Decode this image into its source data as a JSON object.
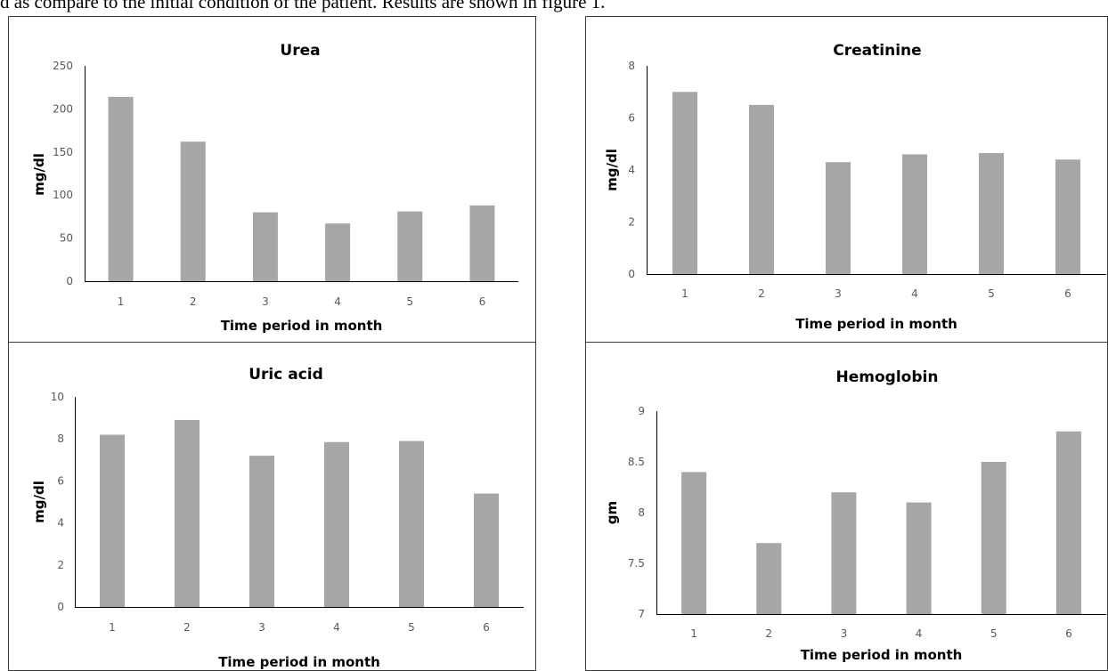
{
  "caption_fragment": "d as compare to the initial condition of the patient. Results are shown in figure 1.",
  "colors": {
    "bar": "#a6a6a6",
    "axis": "#000000",
    "tick_text": "#595959"
  },
  "chart_data": [
    {
      "type": "bar",
      "title": "Urea",
      "xlabel": "Time period in month",
      "ylabel": "mg/dl",
      "categories": [
        "1",
        "2",
        "3",
        "4",
        "5",
        "6"
      ],
      "values": [
        214,
        162,
        80,
        67,
        81,
        88
      ],
      "ylim": [
        0,
        250
      ],
      "yticks": [
        0,
        50,
        100,
        150,
        200,
        250
      ],
      "ytick_labels": [
        "0",
        "50",
        "100",
        "150",
        "200",
        "250"
      ],
      "grid": false,
      "legend": "none"
    },
    {
      "type": "bar",
      "title": "Creatinine",
      "xlabel": "Time period in month",
      "ylabel": "mg/dl",
      "categories": [
        "1",
        "2",
        "3",
        "4",
        "5",
        "6"
      ],
      "values": [
        7.0,
        6.5,
        4.3,
        4.6,
        4.65,
        4.4
      ],
      "ylim": [
        0,
        8
      ],
      "yticks": [
        0,
        2,
        4,
        6,
        8
      ],
      "ytick_labels": [
        "0",
        "2",
        "4",
        "6",
        "8"
      ],
      "grid": false,
      "legend": "none"
    },
    {
      "type": "bar",
      "title": "Uric acid",
      "xlabel": "Time period in month",
      "ylabel": "mg/dl",
      "categories": [
        "1",
        "2",
        "3",
        "4",
        "5",
        "6"
      ],
      "values": [
        8.2,
        8.9,
        7.2,
        7.85,
        7.9,
        5.4
      ],
      "ylim": [
        0,
        10
      ],
      "yticks": [
        0,
        2,
        4,
        6,
        8,
        10
      ],
      "ytick_labels": [
        "0",
        "2",
        "4",
        "6",
        "8",
        "10"
      ],
      "grid": false,
      "legend": "none"
    },
    {
      "type": "bar",
      "title": "Hemoglobin",
      "xlabel": "Time period in month",
      "ylabel": "gm",
      "categories": [
        "1",
        "2",
        "3",
        "4",
        "5",
        "6"
      ],
      "values": [
        8.4,
        7.7,
        8.2,
        8.1,
        8.5,
        8.8
      ],
      "ylim": [
        7,
        9
      ],
      "yticks": [
        7,
        7.5,
        8,
        8.5,
        9
      ],
      "ytick_labels": [
        "7",
        "7.5",
        "8",
        "8.5",
        "9"
      ],
      "grid": false,
      "legend": "none"
    }
  ]
}
